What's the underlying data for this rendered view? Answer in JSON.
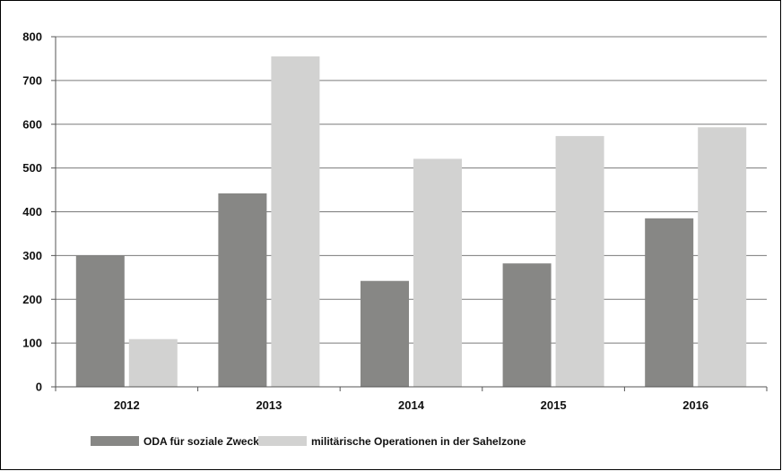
{
  "chart_data": {
    "type": "bar",
    "categories": [
      "2012",
      "2013",
      "2014",
      "2015",
      "2016"
    ],
    "series": [
      {
        "name": "ODA für soziale Zwecke",
        "color": "#878785",
        "values": [
          300,
          442,
          242,
          282,
          385
        ]
      },
      {
        "name": "militärische Operationen in der Sahelzone",
        "color": "#d2d2d1",
        "values": [
          109,
          755,
          521,
          573,
          593
        ]
      }
    ],
    "ylim": [
      0,
      800
    ],
    "yticks": [
      "0",
      "100",
      "200",
      "300",
      "400",
      "500",
      "600",
      "700",
      "800"
    ],
    "grid": true,
    "legend_position": "bottom-left"
  }
}
